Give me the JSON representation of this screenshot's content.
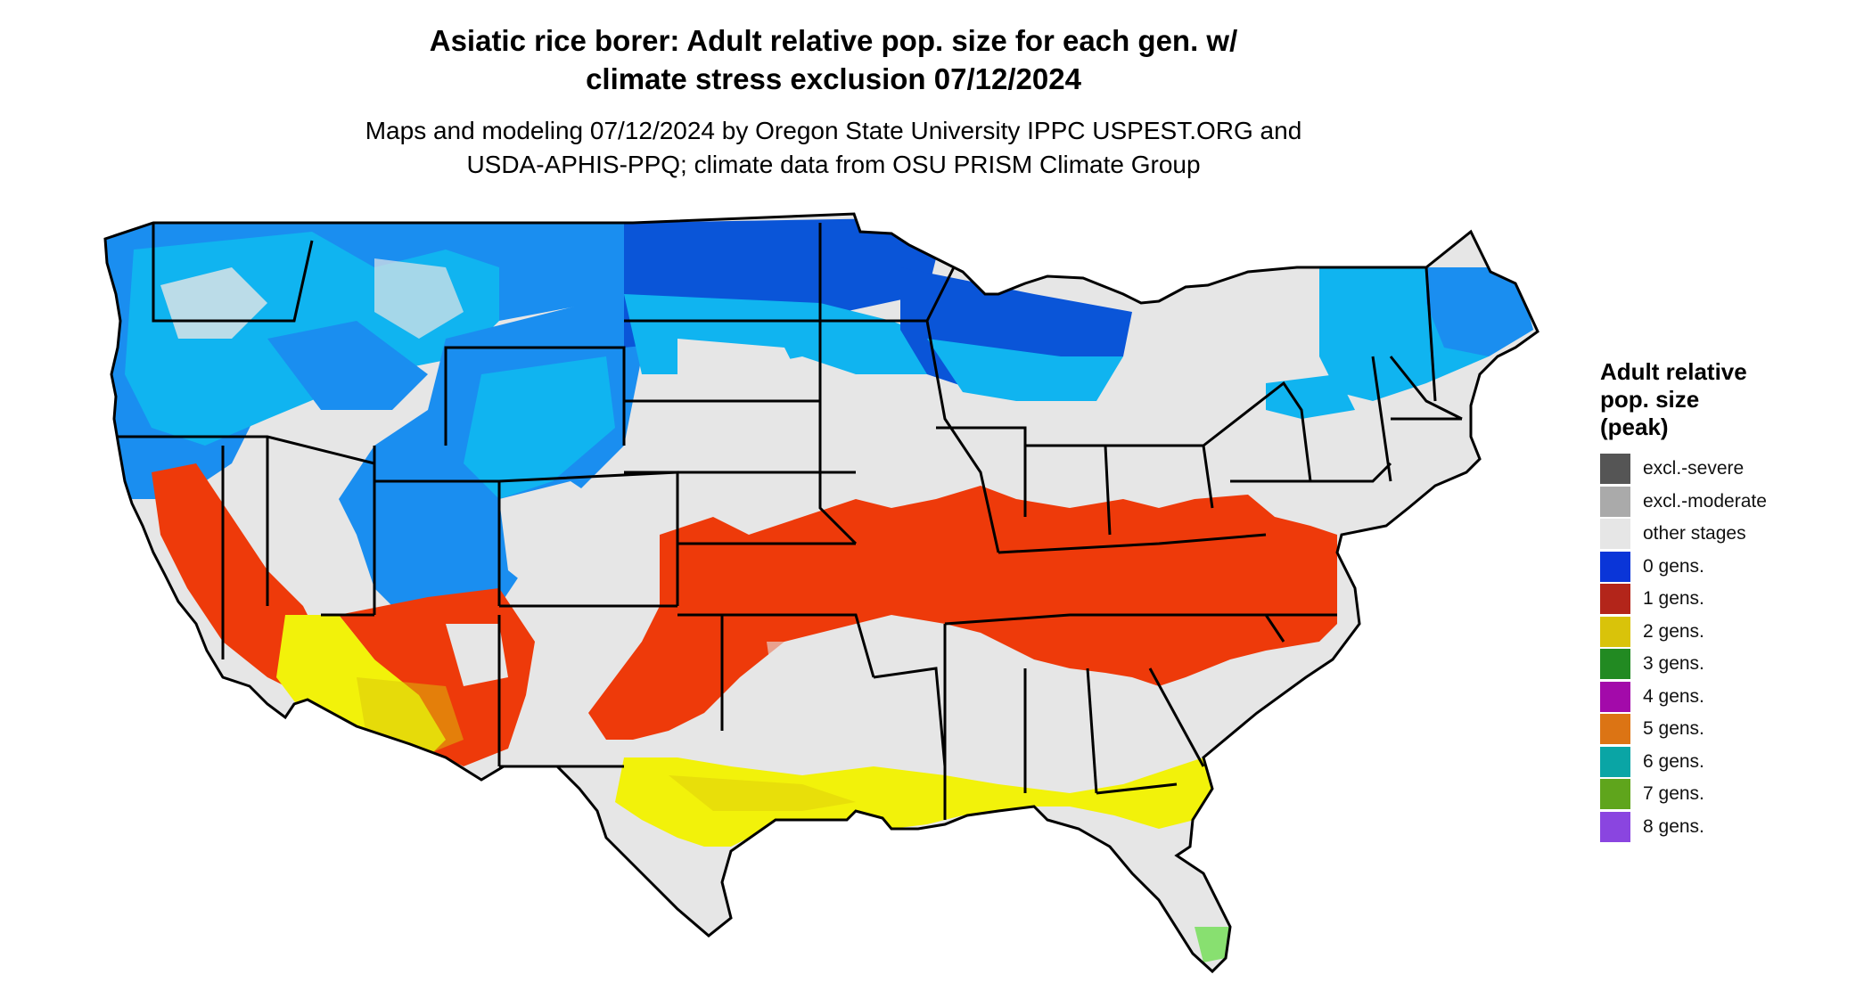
{
  "title_line1": "Asiatic rice borer: Adult relative pop. size for each gen. w/",
  "title_line2": "climate stress exclusion 07/12/2024",
  "subtitle_line1": "Maps and modeling 07/12/2024 by Oregon State University IPPC USPEST.ORG and",
  "subtitle_line2": "USDA-APHIS-PPQ; climate data from OSU PRISM Climate Group",
  "legend": {
    "title_line1": "Adult relative",
    "title_line2": "pop. size",
    "title_line3": "(peak)",
    "items": [
      {
        "label": "excl.-severe",
        "color": "#555555"
      },
      {
        "label": "excl.-moderate",
        "color": "#aaaaaa"
      },
      {
        "label": "other stages",
        "color": "#e6e6e6"
      },
      {
        "label": "0 gens.",
        "color": "#0a35d8"
      },
      {
        "label": "1 gens.",
        "color": "#b3251a"
      },
      {
        "label": "2 gens.",
        "color": "#d9c30a"
      },
      {
        "label": "3 gens.",
        "color": "#228a22"
      },
      {
        "label": "4 gens.",
        "color": "#a30aaa"
      },
      {
        "label": "5 gens.",
        "color": "#dc7414"
      },
      {
        "label": "6 gens.",
        "color": "#0aa5a5"
      },
      {
        "label": "7 gens.",
        "color": "#5fa51c"
      },
      {
        "label": "8 gens.",
        "color": "#8a45e0"
      }
    ]
  },
  "map_colors": {
    "background_land": "#e6e6e6",
    "cool_blue_light": "#10b4f0",
    "cool_blue_mid": "#1a8ef0",
    "cool_blue_dark": "#0a55d8",
    "orange_red": "#ee3a0a",
    "yellow": "#f2f20a",
    "light_green": "#88e070",
    "boundary": "#000000"
  }
}
